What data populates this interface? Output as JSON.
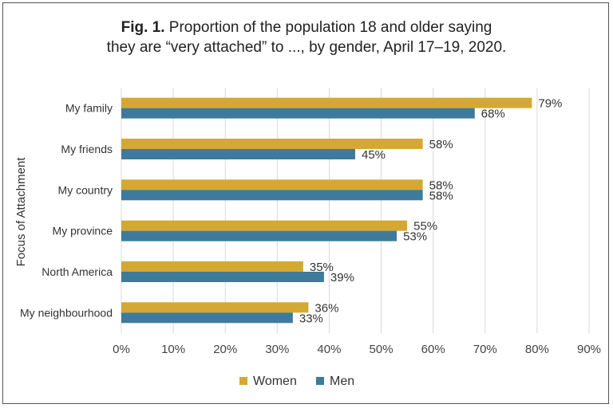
{
  "title": {
    "fig_label": "Fig. 1.",
    "line1": "Proportion of the population 18 and older saying",
    "line2": "they are “very attached” to ..., by gender, April 17–19, 2020."
  },
  "chart_data": {
    "type": "bar",
    "orientation": "horizontal",
    "categories": [
      "My family",
      "My friends",
      "My country",
      "My province",
      "North America",
      "My neighbourhood"
    ],
    "series": [
      {
        "name": "Women",
        "color": "#D4A833",
        "values": [
          79,
          58,
          58,
          55,
          35,
          36
        ],
        "labels": [
          "79%",
          "58%",
          "58%",
          "55%",
          "35%",
          "36%"
        ]
      },
      {
        "name": "Men",
        "color": "#3E7A9C",
        "values": [
          68,
          45,
          58,
          53,
          39,
          33
        ],
        "labels": [
          "68%",
          "45%",
          "58%",
          "53%",
          "39%",
          "33%"
        ]
      }
    ],
    "xlim": [
      0,
      90
    ],
    "xticks": [
      "0%",
      "10%",
      "20%",
      "30%",
      "40%",
      "50%",
      "60%",
      "70%",
      "80%",
      "90%"
    ],
    "ylabel": "Focus of Attachment",
    "grid": "vertical",
    "legend": "bottom"
  }
}
